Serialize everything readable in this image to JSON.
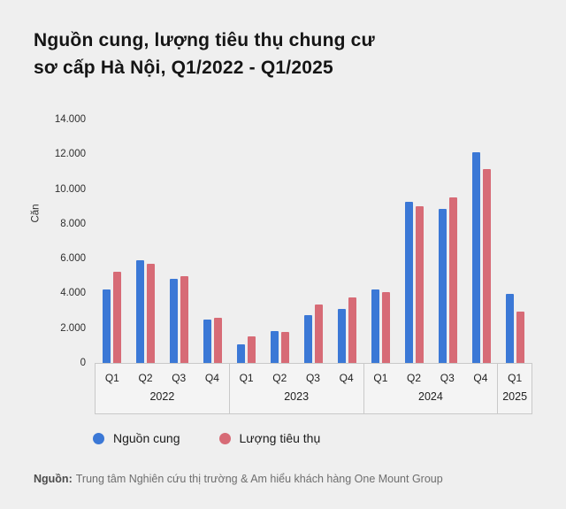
{
  "title": {
    "line1": "Nguồn cung, lượng tiêu thụ chung cư",
    "line2": "sơ cấp Hà Nội, Q1/2022 - Q1/2025"
  },
  "chart_data": {
    "type": "bar",
    "title": "Nguồn cung, lượng tiêu thụ chung cư sơ cấp Hà Nội, Q1/2022 - Q1/2025",
    "ylabel": "Căn",
    "ylim": [
      0,
      14000
    ],
    "grid": false,
    "legend_position": "bottom",
    "yticks": [
      {
        "value": 14000,
        "label": "14.000"
      },
      {
        "value": 12000,
        "label": "12.000"
      },
      {
        "value": 10000,
        "label": "10.000"
      },
      {
        "value": 8000,
        "label": "8.000"
      },
      {
        "value": 6000,
        "label": "6.000"
      },
      {
        "value": 4000,
        "label": "4.000"
      },
      {
        "value": 2000,
        "label": "2.000"
      },
      {
        "value": 0,
        "label": "0"
      }
    ],
    "groups": [
      {
        "year": "2022",
        "quarters": [
          "Q1",
          "Q2",
          "Q3",
          "Q4"
        ]
      },
      {
        "year": "2023",
        "quarters": [
          "Q1",
          "Q2",
          "Q3",
          "Q4"
        ]
      },
      {
        "year": "2024",
        "quarters": [
          "Q1",
          "Q2",
          "Q3",
          "Q4"
        ]
      },
      {
        "year": "2025",
        "quarters": [
          "Q1"
        ]
      }
    ],
    "categories": [
      "Q1/2022",
      "Q2/2022",
      "Q3/2022",
      "Q4/2022",
      "Q1/2023",
      "Q2/2023",
      "Q3/2023",
      "Q4/2023",
      "Q1/2024",
      "Q2/2024",
      "Q3/2024",
      "Q4/2024",
      "Q1/2025"
    ],
    "series": [
      {
        "name": "Nguồn cung",
        "color": "#3b78d6",
        "values": [
          4250,
          5900,
          4850,
          2500,
          1050,
          1850,
          2750,
          3100,
          4200,
          9250,
          8850,
          12100,
          3950
        ]
      },
      {
        "name": "Lượng tiêu thụ",
        "color": "#d76b76",
        "values": [
          5250,
          5700,
          5000,
          2600,
          1550,
          1800,
          3350,
          3750,
          4050,
          9000,
          9500,
          11150,
          2950
        ]
      }
    ]
  },
  "legend": {
    "items": [
      {
        "label": "Nguồn cung",
        "color": "#3b78d6"
      },
      {
        "label": "Lượng tiêu thụ",
        "color": "#d76b76"
      }
    ]
  },
  "source": {
    "label": "Nguồn:",
    "text": "Trung tâm Nghiên cứu thị trường & Am hiểu khách hàng One Mount Group"
  }
}
